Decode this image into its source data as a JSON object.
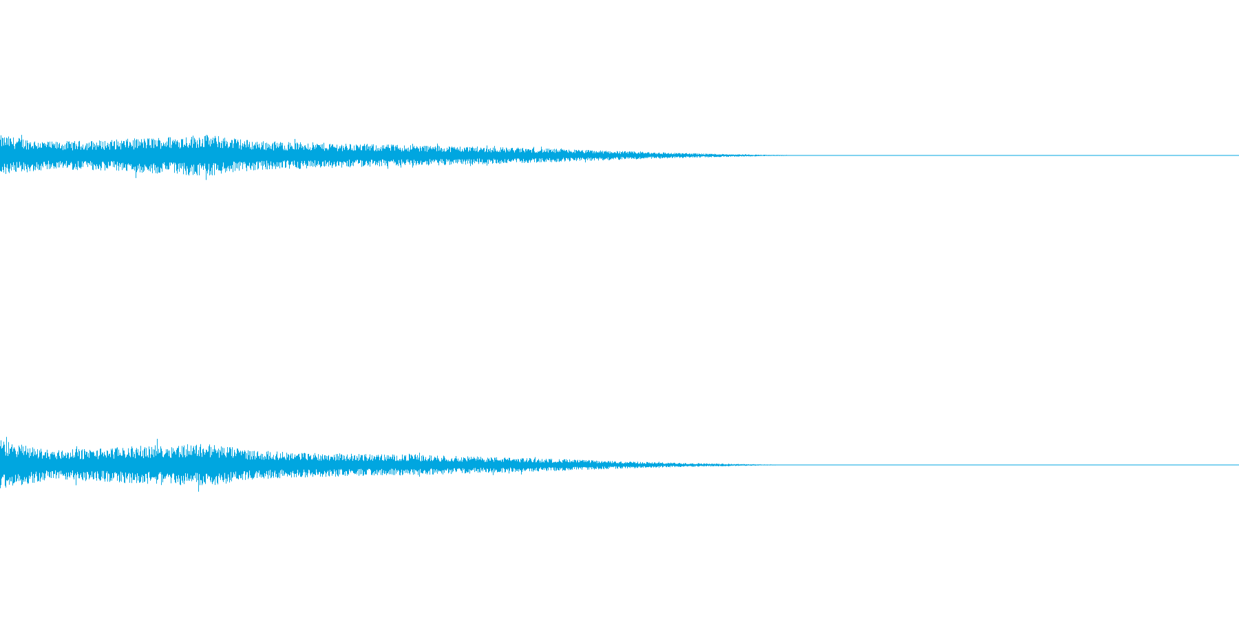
{
  "colors": {
    "background": "#ffffff",
    "waveform": "#00a6e0"
  },
  "waveform": {
    "channels": [
      {
        "id": "channel-1",
        "envelope": [
          0.95,
          0.65,
          0.72,
          0.85,
          1.0,
          0.7,
          0.62,
          0.55,
          0.5,
          0.44,
          0.38,
          0.3,
          0.22,
          0.14,
          0.08,
          0.03,
          0.0
        ]
      },
      {
        "id": "channel-2",
        "envelope": [
          1.0,
          0.6,
          0.68,
          0.8,
          0.88,
          0.58,
          0.5,
          0.45,
          0.42,
          0.36,
          0.3,
          0.24,
          0.16,
          0.1,
          0.06,
          0.02,
          0.0
        ]
      }
    ],
    "active_fraction": 0.66
  }
}
